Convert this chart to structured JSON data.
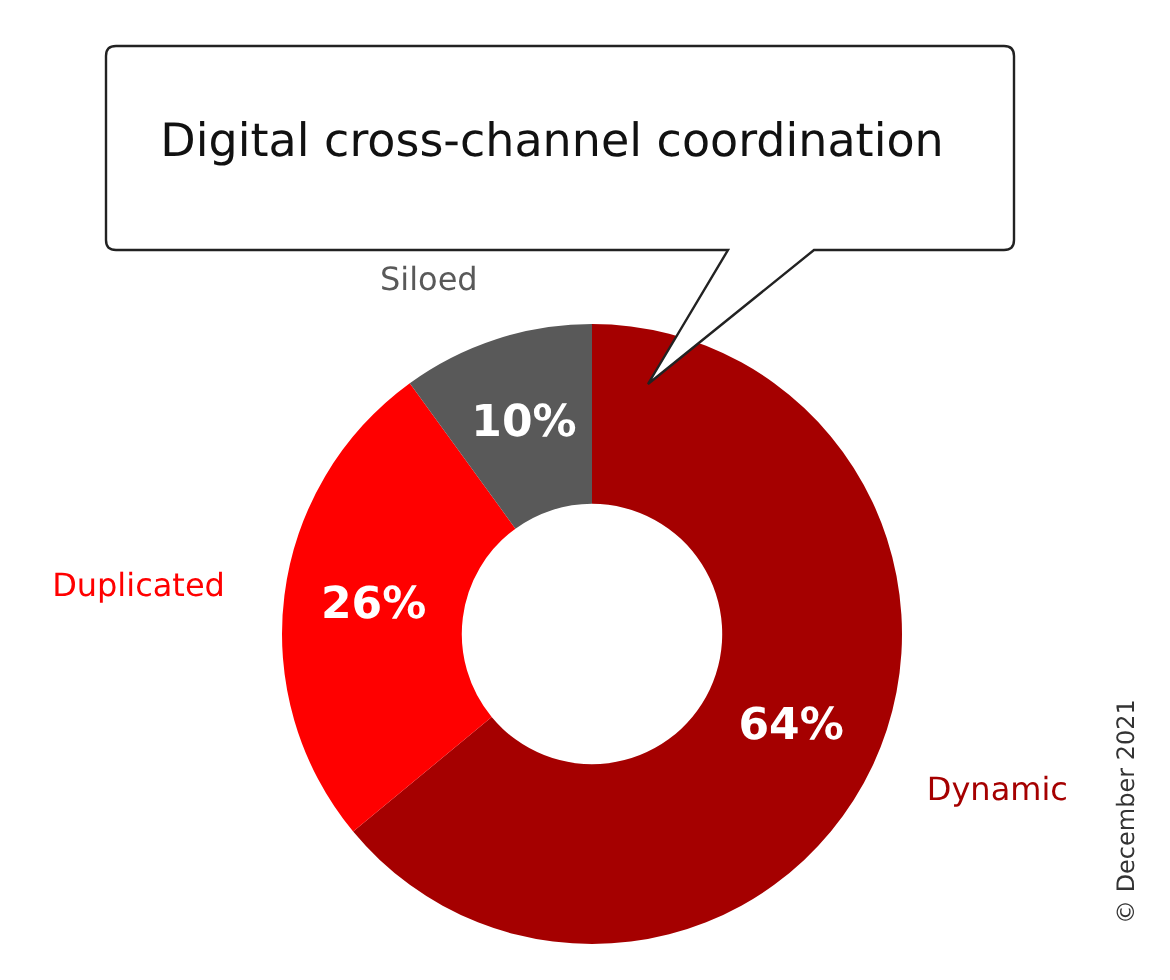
{
  "chart_data": {
    "type": "donut",
    "title": "Digital cross-channel coordination",
    "categories": [
      "Dynamic",
      "Duplicated",
      "Siloed"
    ],
    "values": [
      64,
      26,
      10
    ],
    "colors": [
      "#a50000",
      "#ff0000",
      "#595959"
    ],
    "value_labels": [
      "64%",
      "26%",
      "10%"
    ],
    "legend": false,
    "annotations": [
      "© December 2021"
    ]
  }
}
